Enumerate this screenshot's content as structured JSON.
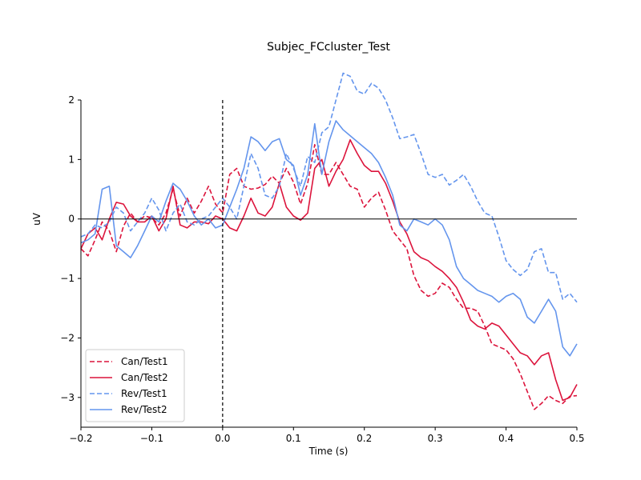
{
  "chart_data": {
    "type": "line",
    "title": "Subjec_FCcluster_Test",
    "xlabel": "Time (s)",
    "ylabel": "uV",
    "xlim": [
      -0.2,
      0.5
    ],
    "ylim": [
      -3.5,
      2.0
    ],
    "xticks": [
      -0.2,
      -0.1,
      0.0,
      0.1,
      0.2,
      0.3,
      0.4,
      0.5
    ],
    "yticks": [
      -3,
      -2,
      -1,
      0,
      1,
      2
    ],
    "xtick_labels": [
      "−0.2",
      "−0.1",
      "0.0",
      "0.1",
      "0.2",
      "0.3",
      "0.4",
      "0.5"
    ],
    "ytick_labels": [
      "−3",
      "−2",
      "−1",
      "0",
      "1",
      "2"
    ],
    "zero_line": true,
    "onset_marker_x": 0.0,
    "grid": false,
    "legend_position": "lower-left",
    "series": [
      {
        "name": "Can/Test1",
        "color": "#dc143c",
        "dashed": true,
        "x": [
          -0.2,
          -0.19,
          -0.18,
          -0.17,
          -0.16,
          -0.15,
          -0.14,
          -0.13,
          -0.12,
          -0.11,
          -0.1,
          -0.09,
          -0.08,
          -0.07,
          -0.06,
          -0.05,
          -0.04,
          -0.03,
          -0.02,
          -0.01,
          0.0,
          0.01,
          0.02,
          0.03,
          0.04,
          0.05,
          0.06,
          0.07,
          0.08,
          0.09,
          0.1,
          0.11,
          0.12,
          0.13,
          0.14,
          0.15,
          0.16,
          0.17,
          0.18,
          0.19,
          0.2,
          0.21,
          0.22,
          0.23,
          0.24,
          0.25,
          0.26,
          0.27,
          0.28,
          0.29,
          0.3,
          0.31,
          0.32,
          0.33,
          0.34,
          0.35,
          0.36,
          0.37,
          0.38,
          0.39,
          0.4,
          0.41,
          0.42,
          0.43,
          0.44,
          0.45,
          0.46,
          0.47,
          0.48,
          0.49,
          0.5
        ],
        "y": [
          -0.5,
          -0.62,
          -0.35,
          -0.05,
          -0.2,
          -0.55,
          -0.12,
          0.1,
          -0.05,
          0.05,
          0.02,
          -0.1,
          0.1,
          0.5,
          0.05,
          0.35,
          0.1,
          0.3,
          0.55,
          0.25,
          0.1,
          0.75,
          0.85,
          0.55,
          0.5,
          0.52,
          0.58,
          0.72,
          0.6,
          0.85,
          0.62,
          0.25,
          0.6,
          1.25,
          0.75,
          0.75,
          0.95,
          0.75,
          0.55,
          0.5,
          0.2,
          0.35,
          0.45,
          0.15,
          -0.2,
          -0.35,
          -0.5,
          -0.95,
          -1.2,
          -1.3,
          -1.25,
          -1.08,
          -1.15,
          -1.35,
          -1.5,
          -1.5,
          -1.55,
          -1.8,
          -2.1,
          -2.15,
          -2.2,
          -2.35,
          -2.6,
          -2.9,
          -3.2,
          -3.1,
          -2.97,
          -3.05,
          -3.1,
          -2.98,
          -2.97
        ]
      },
      {
        "name": "Can/Test2",
        "color": "#dc143c",
        "dashed": false,
        "x": [
          -0.2,
          -0.19,
          -0.18,
          -0.17,
          -0.16,
          -0.15,
          -0.14,
          -0.13,
          -0.12,
          -0.11,
          -0.1,
          -0.09,
          -0.08,
          -0.07,
          -0.06,
          -0.05,
          -0.04,
          -0.03,
          -0.02,
          -0.01,
          0.0,
          0.01,
          0.02,
          0.03,
          0.04,
          0.05,
          0.06,
          0.07,
          0.08,
          0.09,
          0.1,
          0.11,
          0.12,
          0.13,
          0.14,
          0.15,
          0.16,
          0.17,
          0.18,
          0.19,
          0.2,
          0.21,
          0.22,
          0.23,
          0.24,
          0.25,
          0.26,
          0.27,
          0.28,
          0.29,
          0.3,
          0.31,
          0.32,
          0.33,
          0.34,
          0.35,
          0.36,
          0.37,
          0.38,
          0.39,
          0.4,
          0.41,
          0.42,
          0.43,
          0.44,
          0.45,
          0.46,
          0.47,
          0.48,
          0.49,
          0.5
        ],
        "y": [
          -0.5,
          -0.25,
          -0.15,
          -0.35,
          0.0,
          0.28,
          0.25,
          0.05,
          -0.05,
          -0.05,
          0.05,
          -0.2,
          0.0,
          0.55,
          -0.1,
          -0.15,
          -0.05,
          -0.05,
          -0.08,
          0.05,
          0.0,
          -0.15,
          -0.2,
          0.05,
          0.35,
          0.1,
          0.05,
          0.2,
          0.6,
          0.2,
          0.05,
          -0.02,
          0.1,
          0.85,
          1.0,
          0.55,
          0.8,
          1.0,
          1.33,
          1.1,
          0.9,
          0.8,
          0.8,
          0.6,
          0.3,
          -0.05,
          -0.25,
          -0.55,
          -0.65,
          -0.7,
          -0.8,
          -0.88,
          -1.0,
          -1.15,
          -1.4,
          -1.7,
          -1.8,
          -1.85,
          -1.75,
          -1.8,
          -1.95,
          -2.1,
          -2.25,
          -2.3,
          -2.45,
          -2.3,
          -2.25,
          -2.7,
          -3.05,
          -3.0,
          -2.78
        ]
      },
      {
        "name": "Rev/Test1",
        "color": "#6495ed",
        "dashed": true,
        "x": [
          -0.2,
          -0.19,
          -0.18,
          -0.17,
          -0.16,
          -0.15,
          -0.14,
          -0.13,
          -0.12,
          -0.11,
          -0.1,
          -0.09,
          -0.08,
          -0.07,
          -0.06,
          -0.05,
          -0.04,
          -0.03,
          -0.02,
          -0.01,
          0.0,
          0.01,
          0.02,
          0.03,
          0.04,
          0.05,
          0.06,
          0.07,
          0.08,
          0.09,
          0.1,
          0.11,
          0.12,
          0.13,
          0.14,
          0.15,
          0.16,
          0.17,
          0.18,
          0.19,
          0.2,
          0.21,
          0.22,
          0.23,
          0.24,
          0.25,
          0.26,
          0.27,
          0.28,
          0.29,
          0.3,
          0.31,
          0.32,
          0.33,
          0.34,
          0.35,
          0.36,
          0.37,
          0.38,
          0.39,
          0.4,
          0.41,
          0.42,
          0.43,
          0.44,
          0.45,
          0.46,
          0.47,
          0.48,
          0.49,
          0.5
        ],
        "y": [
          -0.3,
          -0.25,
          -0.1,
          -0.15,
          -0.05,
          0.2,
          0.1,
          -0.2,
          -0.05,
          0.1,
          0.35,
          0.15,
          -0.2,
          0.1,
          0.25,
          -0.05,
          -0.1,
          0.0,
          0.05,
          0.2,
          0.35,
          0.2,
          0.0,
          0.55,
          1.1,
          0.85,
          0.4,
          0.35,
          0.55,
          1.1,
          0.85,
          0.55,
          1.05,
          0.95,
          1.45,
          1.55,
          2.0,
          2.45,
          2.4,
          2.15,
          2.1,
          2.28,
          2.2,
          2.0,
          1.7,
          1.35,
          1.38,
          1.42,
          1.1,
          0.75,
          0.7,
          0.75,
          0.57,
          0.65,
          0.75,
          0.55,
          0.3,
          0.1,
          0.05,
          -0.3,
          -0.7,
          -0.85,
          -0.95,
          -0.85,
          -0.55,
          -0.5,
          -0.9,
          -0.9,
          -1.35,
          -1.25,
          -1.4
        ]
      },
      {
        "name": "Rev/Test2",
        "color": "#6495ed",
        "dashed": false,
        "x": [
          -0.2,
          -0.19,
          -0.18,
          -0.17,
          -0.16,
          -0.15,
          -0.14,
          -0.13,
          -0.12,
          -0.11,
          -0.1,
          -0.09,
          -0.08,
          -0.07,
          -0.06,
          -0.05,
          -0.04,
          -0.03,
          -0.02,
          -0.01,
          0.0,
          0.01,
          0.02,
          0.03,
          0.04,
          0.05,
          0.06,
          0.07,
          0.08,
          0.09,
          0.1,
          0.11,
          0.12,
          0.13,
          0.14,
          0.15,
          0.16,
          0.17,
          0.18,
          0.19,
          0.2,
          0.21,
          0.22,
          0.23,
          0.24,
          0.25,
          0.26,
          0.27,
          0.28,
          0.29,
          0.3,
          0.31,
          0.32,
          0.33,
          0.34,
          0.35,
          0.36,
          0.37,
          0.38,
          0.39,
          0.4,
          0.41,
          0.42,
          0.43,
          0.44,
          0.45,
          0.46,
          0.47,
          0.48,
          0.49,
          0.5
        ],
        "y": [
          -0.4,
          -0.35,
          -0.25,
          0.5,
          0.55,
          -0.45,
          -0.55,
          -0.65,
          -0.45,
          -0.2,
          0.05,
          -0.05,
          0.3,
          0.6,
          0.5,
          0.3,
          0.05,
          -0.1,
          0.0,
          -0.15,
          -0.1,
          0.2,
          0.5,
          0.85,
          1.38,
          1.3,
          1.15,
          1.3,
          1.35,
          1.0,
          0.9,
          0.4,
          0.75,
          1.6,
          0.75,
          1.3,
          1.65,
          1.5,
          1.4,
          1.3,
          1.2,
          1.1,
          0.95,
          0.7,
          0.4,
          -0.1,
          -0.2,
          0.0,
          -0.05,
          -0.1,
          0.0,
          -0.1,
          -0.35,
          -0.8,
          -1.0,
          -1.1,
          -1.2,
          -1.25,
          -1.3,
          -1.4,
          -1.3,
          -1.25,
          -1.35,
          -1.65,
          -1.75,
          -1.55,
          -1.35,
          -1.55,
          -2.15,
          -2.3,
          -2.1
        ]
      }
    ]
  }
}
